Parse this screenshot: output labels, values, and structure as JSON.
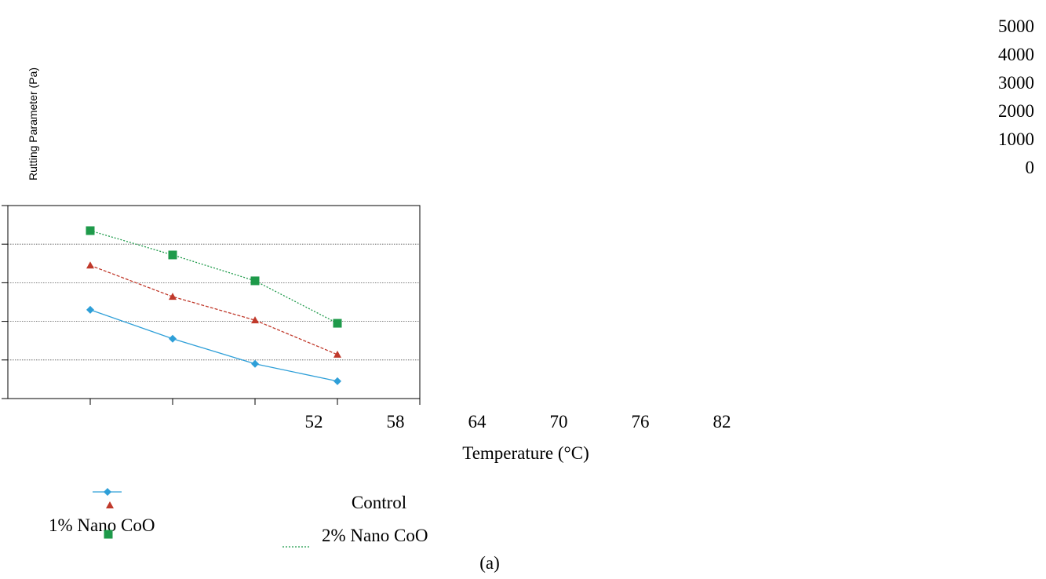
{
  "chart_data": {
    "type": "line",
    "x_label": "Temperature (°C)",
    "y_label": "Rutting Parameter (Pa)",
    "caption": "(a)",
    "x": [
      52,
      58,
      64,
      70
    ],
    "xlim": [
      46,
      76
    ],
    "xticks": [
      52,
      58,
      64,
      70,
      76,
      82
    ],
    "ylim": [
      0,
      5000
    ],
    "yticks": [
      5000,
      4000,
      3000,
      2000,
      1000,
      0
    ],
    "grid": true,
    "series": [
      {
        "name": "Control",
        "color": "#2e9fd8",
        "values": [
          2300,
          1550,
          900,
          450
        ]
      },
      {
        "name": "1% Nano CoO",
        "color": "#c0392b",
        "values": [
          3450,
          2640,
          2030,
          1140
        ]
      },
      {
        "name": "2% Nano CoO",
        "color": "#1e9a4a",
        "values": [
          4350,
          3720,
          3050,
          1950
        ]
      }
    ]
  }
}
